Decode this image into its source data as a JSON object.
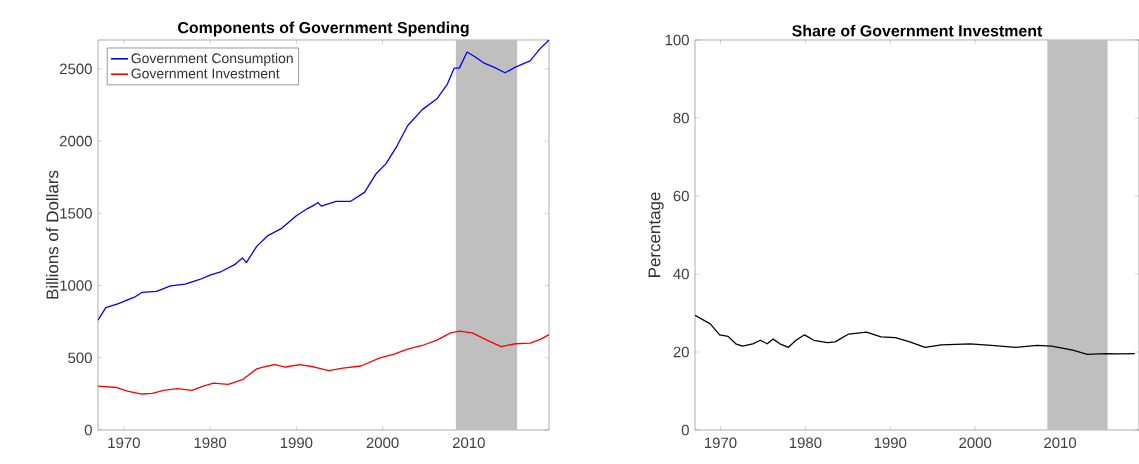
{
  "chart_data": [
    {
      "type": "line",
      "title": "Components of Government Spending",
      "ylabel": "Billions of Dollars",
      "xlim": [
        1967,
        2019.3
      ],
      "xticks": [
        1970,
        1980,
        1990,
        2000,
        2010
      ],
      "ylim": [
        0,
        2700
      ],
      "yticks": [
        0,
        500,
        1000,
        1500,
        2000,
        2500
      ],
      "legend": "top left",
      "grid": false,
      "bands": [
        {
          "axis": "x",
          "from": 2008.5,
          "to": 2015.6,
          "color": "#bfbfbf"
        }
      ],
      "series": [
        {
          "name": "Government Consumption",
          "color": "#0000ff",
          "x": [
            1967,
            1967.9,
            1969.2,
            1970,
            1971.3,
            1972.1,
            1973.8,
            1975.4,
            1977.1,
            1978.8,
            1980,
            1981.3,
            1982.9,
            1983.75,
            1984.2,
            1985.4,
            1986.7,
            1988.3,
            1990,
            1991.3,
            1992.1,
            1992.5,
            1992.9,
            1994.6,
            1996.3,
            1997.9,
            1999.2,
            2000.4,
            2001.7,
            2002.9,
            2004.6,
            2006.3,
            2007.5,
            2008.3,
            2008.9,
            2009.8,
            2010.8,
            2011.7,
            2012.9,
            2014.2,
            2015.4,
            2017.1,
            2018.3,
            2019.3
          ],
          "values": [
            760,
            847,
            872,
            890,
            922,
            952,
            960,
            997,
            1010,
            1042,
            1072,
            1097,
            1147,
            1191,
            1159,
            1271,
            1346,
            1396,
            1483,
            1533,
            1558,
            1575,
            1550,
            1583,
            1583,
            1645,
            1770,
            1844,
            1969,
            2106,
            2218,
            2293,
            2393,
            2505,
            2505,
            2617,
            2580,
            2542,
            2512,
            2473,
            2512,
            2555,
            2642,
            2700
          ]
        },
        {
          "name": "Government Investment",
          "color": "#ff0000",
          "x": [
            1967,
            1969.2,
            1970.4,
            1972.1,
            1973.3,
            1974.6,
            1976.25,
            1977.9,
            1979.2,
            1980.4,
            1982.1,
            1983.75,
            1985.4,
            1986.7,
            1987.5,
            1988.75,
            1990.4,
            1992.1,
            1993.75,
            1995.4,
            1997.5,
            1999.6,
            2001.25,
            2002.9,
            2004.6,
            2006.3,
            2007.9,
            2008.9,
            2010.4,
            2012.1,
            2013.75,
            2015.4,
            2017.1,
            2018.3,
            2019.3
          ],
          "values": [
            304,
            294,
            269,
            249,
            254,
            274,
            286,
            274,
            304,
            324,
            316,
            348,
            423,
            443,
            453,
            436,
            453,
            436,
            411,
            428,
            443,
            498,
            523,
            560,
            585,
            622,
            672,
            684,
            672,
            622,
            577,
            597,
            602,
            627,
            660
          ]
        }
      ]
    },
    {
      "type": "line",
      "title": "Share of Government Investment",
      "ylabel": "Percentage",
      "xlim": [
        1967,
        2019.3
      ],
      "xticks": [
        1970,
        1980,
        1990,
        2000,
        2010
      ],
      "ylim": [
        0,
        100
      ],
      "yticks": [
        0,
        20,
        40,
        60,
        80,
        100
      ],
      "grid": false,
      "bands": [
        {
          "axis": "x",
          "from": 2008.5,
          "to": 2015.6,
          "color": "#bfbfbf"
        }
      ],
      "series": [
        {
          "color": "#000000",
          "x": [
            1967,
            1968.8,
            1969.9,
            1970.9,
            1971.8,
            1972.6,
            1973.8,
            1974.7,
            1975.5,
            1976.2,
            1977,
            1978,
            1978.9,
            1979.9,
            1981,
            1982.6,
            1983.5,
            1985.1,
            1987.2,
            1988.9,
            1990.6,
            1992.3,
            1994.1,
            1996,
            1999.4,
            2001.9,
            2004.8,
            2007.3,
            2009,
            2011.5,
            2013.2,
            2015.3,
            2016.9,
            2018.8
          ],
          "values": [
            29.4,
            27.2,
            24.4,
            24,
            22.1,
            21.5,
            22.1,
            23,
            22.1,
            23.3,
            22.1,
            21.2,
            23,
            24.4,
            23,
            22.4,
            22.6,
            24.6,
            25.1,
            23.9,
            23.7,
            22.6,
            21.2,
            21.8,
            22.1,
            21.7,
            21.2,
            21.7,
            21.5,
            20.5,
            19.4,
            19.6,
            19.5,
            19.6
          ]
        }
      ]
    }
  ]
}
